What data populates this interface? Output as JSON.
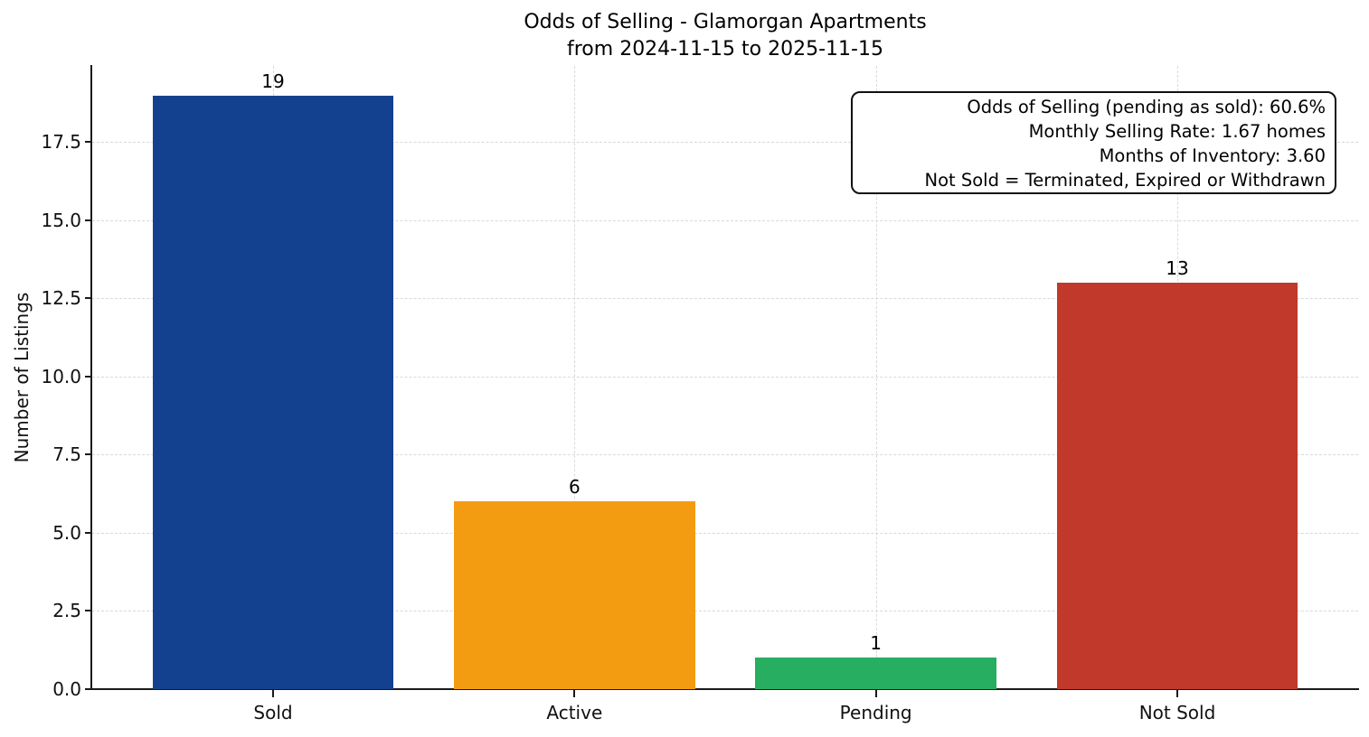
{
  "chart_data": {
    "type": "bar",
    "title": "Odds of Selling - Glamorgan Apartments",
    "subtitle": "from 2024-11-15 to 2025-11-15",
    "categories": [
      "Sold",
      "Active",
      "Pending",
      "Not Sold"
    ],
    "values": [
      19,
      6,
      1,
      13
    ],
    "bar_colors": [
      "#14418f",
      "#f39c12",
      "#27ae60",
      "#c0392b"
    ],
    "value_labels": [
      "19",
      "6",
      "1",
      "13"
    ],
    "xlabel": "",
    "ylabel": "Number of Listings",
    "ylim": [
      0,
      19.94
    ],
    "xlim": [
      -0.6,
      3.6
    ],
    "bar_width": 0.8,
    "yticks": [
      "0.0",
      "2.5",
      "5.0",
      "7.5",
      "10.0",
      "12.5",
      "15.0",
      "17.5"
    ],
    "grid": {
      "style": "dashed",
      "color": "#d9d9d9",
      "axes": "both"
    },
    "legend": "none",
    "annotations": [
      "Odds of Selling (pending as sold): 60.6%",
      "Monthly Selling Rate: 1.67 homes",
      "Months of Inventory: 3.60",
      "Not Sold = Terminated, Expired or Withdrawn"
    ]
  },
  "colors": {
    "spine": "#1a1a1a",
    "grid": "#d9d9d9",
    "text": "#111111",
    "background": "#ffffff"
  }
}
